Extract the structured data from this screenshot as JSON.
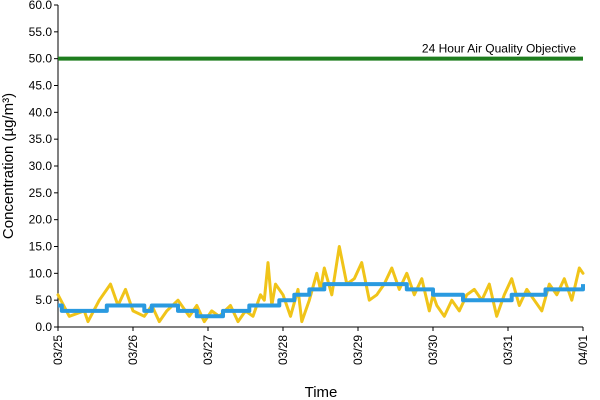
{
  "chart_data": {
    "type": "line",
    "title": "",
    "xlabel": "Time",
    "ylabel": "Concentration (µg/m³)",
    "ylim": [
      0,
      60
    ],
    "xlim": [
      "03/25",
      "04/01"
    ],
    "grid": false,
    "y_ticks": [
      "0.0",
      "5.0",
      "10.0",
      "15.0",
      "20.0",
      "25.0",
      "30.0",
      "35.0",
      "40.0",
      "45.0",
      "50.0",
      "55.0",
      "60.0"
    ],
    "x_ticks": [
      "03/25",
      "03/26",
      "03/27",
      "03/28",
      "03/29",
      "03/30",
      "03/31",
      "04/01"
    ],
    "annotation": "24 Hour Air Quality Objective",
    "colors": {
      "objective": "#1e7d1e",
      "hourly": "#f0c419",
      "daily": "#2a9ae0"
    },
    "series": [
      {
        "x_days": [
          0,
          0.15,
          0.35,
          0.4,
          0.55,
          0.7,
          0.8,
          0.9,
          1.0,
          1.15,
          1.25,
          1.35,
          1.45,
          1.6,
          1.75,
          1.85,
          1.95,
          2.05,
          2.15,
          2.3,
          2.4,
          2.5,
          2.6,
          2.7,
          2.75,
          2.8,
          2.85,
          2.9,
          3.0,
          3.1,
          3.2,
          3.25,
          3.35,
          3.45,
          3.5,
          3.55,
          3.65,
          3.75,
          3.85,
          3.95,
          4.05,
          4.15,
          4.25,
          4.35,
          4.45,
          4.55,
          4.65,
          4.75,
          4.85,
          4.95,
          5.0,
          5.05,
          5.15,
          5.25,
          5.35,
          5.45,
          5.55,
          5.65,
          5.75,
          5.85,
          5.95,
          6.05,
          6.15,
          6.25,
          6.35,
          6.45,
          6.55,
          6.65,
          6.75,
          6.85,
          6.95,
          7.0
        ],
        "values": [
          6,
          2,
          3,
          1,
          5,
          8,
          4,
          7,
          3,
          2,
          4,
          1,
          3,
          5,
          2,
          4,
          1,
          3,
          2,
          4,
          1,
          3,
          2,
          6,
          5,
          12,
          4,
          8,
          6,
          2,
          7,
          1,
          5,
          10,
          7,
          11,
          6,
          15,
          8,
          9,
          12,
          5,
          6,
          8,
          11,
          7,
          10,
          6,
          9,
          3,
          6,
          4,
          2,
          5,
          3,
          6,
          7,
          5,
          8,
          2,
          6,
          9,
          4,
          7,
          5,
          3,
          8,
          6,
          9,
          5,
          11,
          10
        ]
      },
      {
        "step_x_days": [
          0,
          0.05,
          0.65,
          1.15,
          1.25,
          1.6,
          1.85,
          2.2,
          2.55,
          2.75,
          2.95,
          3.15,
          3.35,
          3.55,
          3.75,
          4.65,
          4.8,
          5.0,
          5.2,
          5.4,
          5.55,
          5.95,
          6.05,
          6.5,
          7.0
        ],
        "values": [
          4,
          3,
          4,
          3,
          4,
          3,
          2,
          3,
          4,
          4,
          5,
          6,
          7,
          8,
          8,
          7,
          7,
          6,
          6,
          5,
          5,
          5,
          6,
          7,
          8
        ]
      }
    ]
  }
}
